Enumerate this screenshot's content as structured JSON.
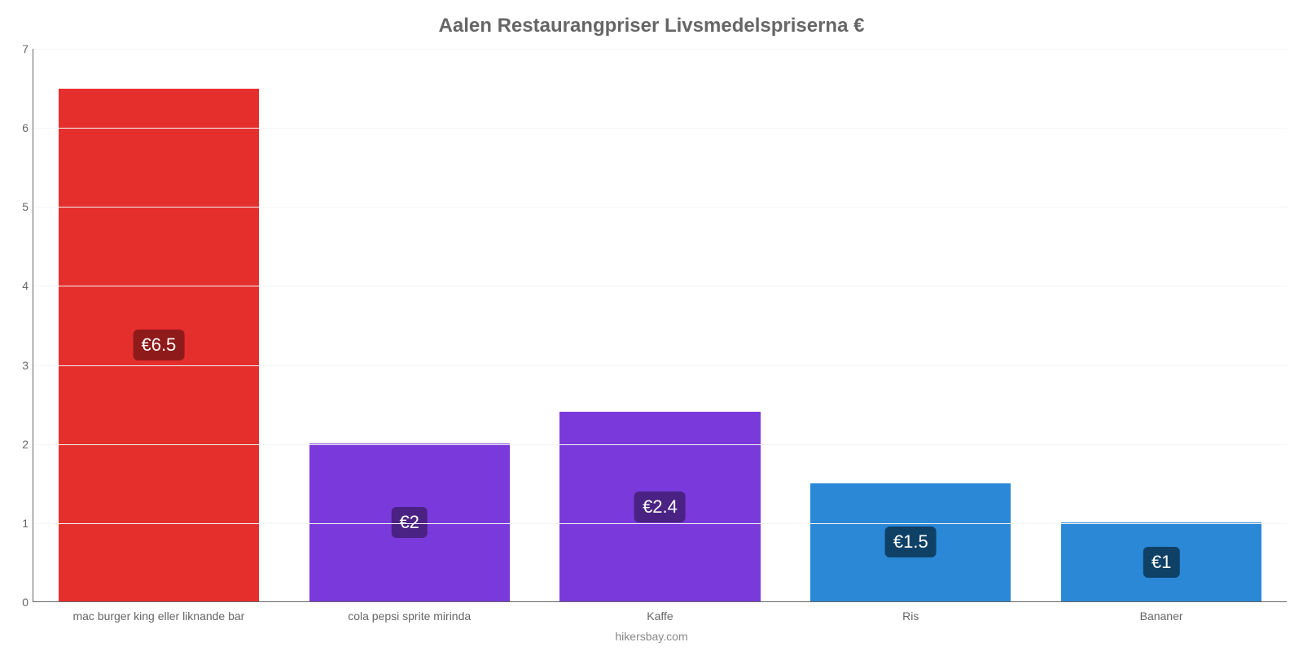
{
  "chart": {
    "type": "bar",
    "title": "Aalen Restaurangpriser Livsmedelspriserna €",
    "title_fontsize": 24,
    "title_color": "#666666",
    "footer": "hikersbay.com",
    "footer_fontsize": 14,
    "footer_color": "#888888",
    "background_color": "#ffffff",
    "axis_color": "#666666",
    "grid_color": "#f5f5f5",
    "ylim_min": 0,
    "ylim_max": 7,
    "ytick_step": 1,
    "yticks": [
      "0",
      "1",
      "2",
      "3",
      "4",
      "5",
      "6",
      "7"
    ],
    "ytick_fontsize": 14,
    "xlabel_fontsize": 14,
    "value_label_fontsize": 22,
    "value_label_text_color": "#ffffff",
    "bar_width_pct": 80,
    "categories": [
      "mac burger king eller liknande bar",
      "cola pepsi sprite mirinda",
      "Kaffe",
      "Ris",
      "Bananer"
    ],
    "values": [
      6.5,
      2,
      2.4,
      1.5,
      1
    ],
    "value_labels": [
      "€6.5",
      "€2",
      "€2.4",
      "€1.5",
      "€1"
    ],
    "bar_colors": [
      "#e52f2d",
      "#7a39db",
      "#7a39db",
      "#2a88d6",
      "#2a88d6"
    ],
    "badge_colors": [
      "#8e1b1a",
      "#4a2283",
      "#4a2283",
      "#0f4166",
      "#0f4166"
    ]
  }
}
